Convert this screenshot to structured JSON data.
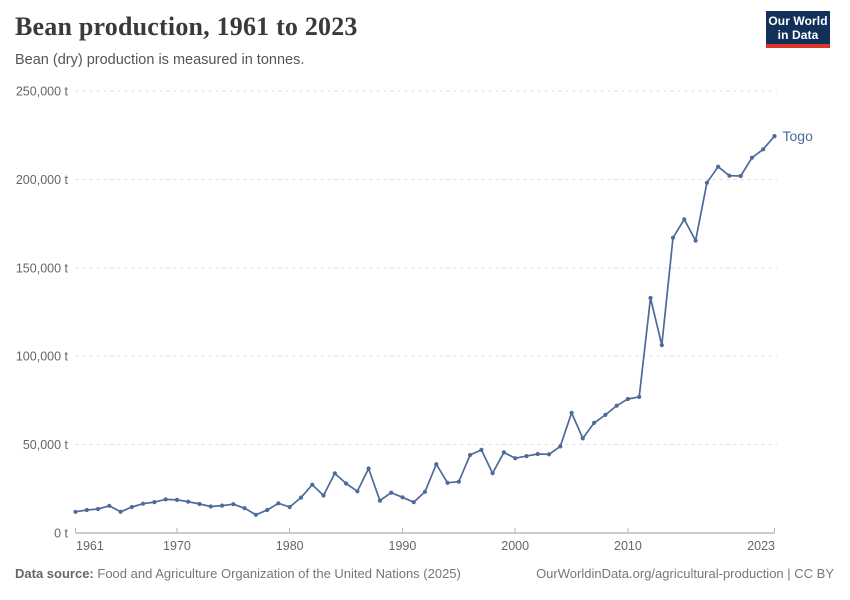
{
  "header": {
    "title": "Bean production, 1961 to 2023",
    "subtitle": "Bean (dry) production is measured in tonnes."
  },
  "logo": {
    "line1": "Our World",
    "line2": "in Data",
    "bg_color": "#12305A",
    "accent_color": "#DC352C"
  },
  "chart_data": {
    "type": "line",
    "title": "Bean production, 1961 to 2023",
    "xlabel": "",
    "ylabel": "tonnes",
    "unit": "t",
    "x_range": [
      1961,
      2023
    ],
    "ylim": [
      0,
      250000
    ],
    "grid": true,
    "legend_position": "end-of-line",
    "y_ticks": [
      {
        "value": 0,
        "label": "0 t"
      },
      {
        "value": 50000,
        "label": "50,000 t"
      },
      {
        "value": 100000,
        "label": "100,000 t"
      },
      {
        "value": 150000,
        "label": "150,000 t"
      },
      {
        "value": 200000,
        "label": "200,000 t"
      },
      {
        "value": 250000,
        "label": "250,000 t"
      }
    ],
    "x_ticks": [
      {
        "value": 1961,
        "label": "1961"
      },
      {
        "value": 1970,
        "label": "1970"
      },
      {
        "value": 1980,
        "label": "1980"
      },
      {
        "value": 1990,
        "label": "1990"
      },
      {
        "value": 2000,
        "label": "2000"
      },
      {
        "value": 2010,
        "label": "2010"
      },
      {
        "value": 2023,
        "label": "2023"
      }
    ],
    "series": [
      {
        "name": "Togo",
        "color": "#4C6A9C",
        "years": [
          1961,
          1962,
          1963,
          1964,
          1965,
          1966,
          1967,
          1968,
          1969,
          1970,
          1971,
          1972,
          1973,
          1974,
          1975,
          1976,
          1977,
          1978,
          1979,
          1980,
          1981,
          1982,
          1983,
          1984,
          1985,
          1986,
          1987,
          1988,
          1989,
          1990,
          1991,
          1992,
          1993,
          1994,
          1995,
          1996,
          1997,
          1998,
          1999,
          2000,
          2001,
          2002,
          2003,
          2004,
          2005,
          2006,
          2007,
          2008,
          2009,
          2010,
          2011,
          2012,
          2013,
          2014,
          2015,
          2016,
          2017,
          2018,
          2019,
          2020,
          2021,
          2022,
          2023
        ],
        "values": [
          12000,
          13000,
          13600,
          15400,
          12000,
          14700,
          16600,
          17500,
          19000,
          18700,
          17700,
          16400,
          15000,
          15500,
          16300,
          14000,
          10300,
          13000,
          16800,
          14700,
          20000,
          27300,
          21200,
          33700,
          28000,
          23600,
          36500,
          18300,
          22800,
          20200,
          17400,
          23300,
          38900,
          28400,
          29000,
          44100,
          47000,
          33800,
          45600,
          42300,
          43500,
          44700,
          44500,
          49000,
          68000,
          53500,
          62300,
          66800,
          72000,
          75800,
          77000,
          132900,
          106300,
          167000,
          177400,
          165300,
          198100,
          207200,
          202100,
          201900,
          212300,
          217000,
          224500
        ]
      }
    ],
    "colors": {
      "line": "#4C6A9C",
      "gridline": "#DDDDDD",
      "axis": "#9A9A9A",
      "tick": "#B5B5B5",
      "tick_text": "#666666"
    }
  },
  "footer": {
    "datasource_label": "Data source:",
    "datasource_text": "Food and Agriculture Organization of the United Nations (2025)",
    "credit": "OurWorldinData.org/agricultural-production | CC BY"
  }
}
